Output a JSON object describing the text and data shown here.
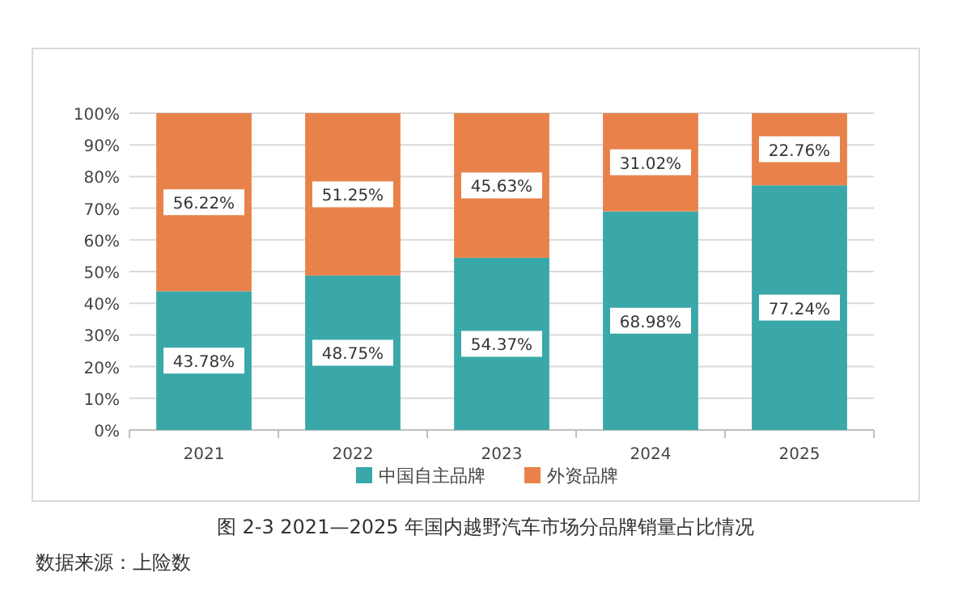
{
  "chart_data": {
    "type": "bar",
    "stacked": true,
    "categories": [
      "2021",
      "2022",
      "2023",
      "2024",
      "2025"
    ],
    "series": [
      {
        "name": "中国自主品牌",
        "color": "#3aa7a8",
        "values": [
          43.78,
          48.75,
          54.37,
          68.98,
          77.24
        ],
        "value_labels": [
          "43.78%",
          "48.75%",
          "54.37%",
          "68.98%",
          "77.24%"
        ]
      },
      {
        "name": "外资品牌",
        "color": "#e8824a",
        "values": [
          56.22,
          51.25,
          45.63,
          31.02,
          22.76
        ],
        "value_labels": [
          "56.22%",
          "51.25%",
          "45.63%",
          "31.02%",
          "22.76%"
        ]
      }
    ],
    "ylim": [
      0,
      100
    ],
    "yticks": [
      {
        "value": 0,
        "label": "0%"
      },
      {
        "value": 10,
        "label": "10%"
      },
      {
        "value": 20,
        "label": "20%"
      },
      {
        "value": 30,
        "label": "30%"
      },
      {
        "value": 40,
        "label": "40%"
      },
      {
        "value": 50,
        "label": "50%"
      },
      {
        "value": 60,
        "label": "60%"
      },
      {
        "value": 70,
        "label": "70%"
      },
      {
        "value": 80,
        "label": "80%"
      },
      {
        "value": 90,
        "label": "90%"
      },
      {
        "value": 100,
        "label": "100%"
      }
    ],
    "grid": "y",
    "legend": "bottom",
    "annotations": [
      "图 2-3 2021—2025 年国内越野汽车市场分品牌销量占比情况",
      "数据来源：上险数"
    ]
  }
}
